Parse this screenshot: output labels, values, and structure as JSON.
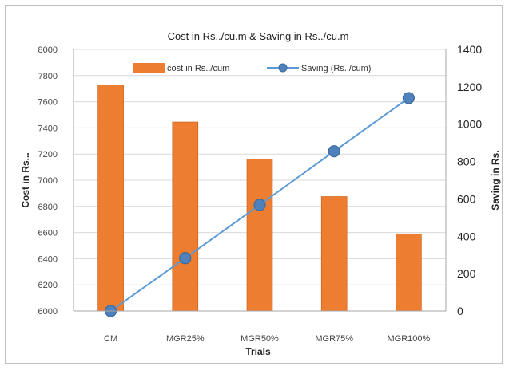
{
  "chart_data": {
    "type": "bar",
    "title": "Cost in Rs../cu.m & Saving in Rs../cu.m",
    "xlabel": "Trials",
    "ylabel": "Cost in Rs...",
    "y2label": "Saving in Rs.",
    "categories": [
      "CM",
      "MGR25%",
      "MGR50%",
      "MGR75%",
      "MGR100%"
    ],
    "ylim": [
      6000,
      8000
    ],
    "y2lim": [
      0,
      1400
    ],
    "yticks": [
      6000,
      6200,
      6400,
      6600,
      6800,
      7000,
      7200,
      7400,
      7600,
      7800,
      8000
    ],
    "y2ticks": [
      0,
      200,
      400,
      600,
      800,
      1000,
      1200,
      1400
    ],
    "grid": true,
    "legend_position": "top",
    "series": [
      {
        "name": "cost in Rs../cum",
        "type": "bar",
        "axis": "left",
        "color": "#ED7D31",
        "values": [
          7730,
          7445,
          7160,
          6875,
          6590
        ]
      },
      {
        "name": "Saving (Rs../cum)",
        "type": "line",
        "axis": "right",
        "color": "#5B9BD5",
        "values": [
          0,
          283,
          568,
          855,
          1140
        ]
      }
    ]
  }
}
